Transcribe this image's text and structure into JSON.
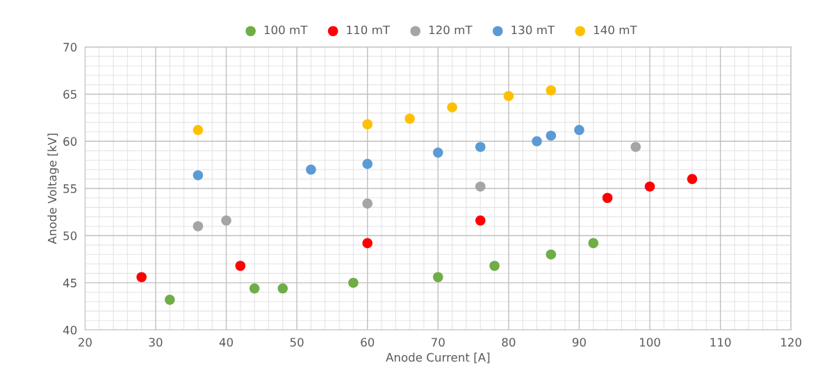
{
  "chart_data": {
    "type": "scatter",
    "xlabel": "Anode Current [A]",
    "ylabel": "Anode Voltage [kV]",
    "xlim": [
      20,
      120
    ],
    "xticks": [
      20,
      30,
      40,
      50,
      60,
      70,
      80,
      90,
      100,
      110,
      120
    ],
    "ylim": [
      40,
      70
    ],
    "yticks": [
      40,
      45,
      50,
      55,
      60,
      65,
      70
    ],
    "grid": true,
    "legend": "top",
    "marker": "circle",
    "series": [
      {
        "name": "100 mT",
        "color": "#70ad47",
        "x": [
          32,
          44,
          48,
          58,
          70,
          78,
          86,
          92
        ],
        "values": [
          43.2,
          44.4,
          44.4,
          45,
          45.6,
          46.8,
          48,
          49.2
        ]
      },
      {
        "name": "110 mT",
        "color": "#ff0000",
        "x": [
          28,
          42,
          60,
          76,
          94,
          100,
          106
        ],
        "values": [
          45.6,
          46.8,
          49.2,
          51.6,
          54,
          55.2,
          56
        ]
      },
      {
        "name": "120 mT",
        "color": "#a5a5a5",
        "x": [
          36,
          40,
          60,
          76,
          98
        ],
        "values": [
          51,
          51.6,
          53.4,
          55.2,
          59.4
        ]
      },
      {
        "name": "130 mT",
        "color": "#5b9bd5",
        "x": [
          36,
          52,
          60,
          70,
          76,
          84,
          86,
          90
        ],
        "values": [
          56.4,
          57,
          57.6,
          58.8,
          59.4,
          60,
          60.6,
          61.2
        ]
      },
      {
        "name": "140 mT",
        "color": "#ffc000",
        "x": [
          36,
          60,
          66,
          72,
          80,
          86
        ],
        "values": [
          61.2,
          61.8,
          62.4,
          63.6,
          64.8,
          65.4
        ]
      }
    ]
  }
}
